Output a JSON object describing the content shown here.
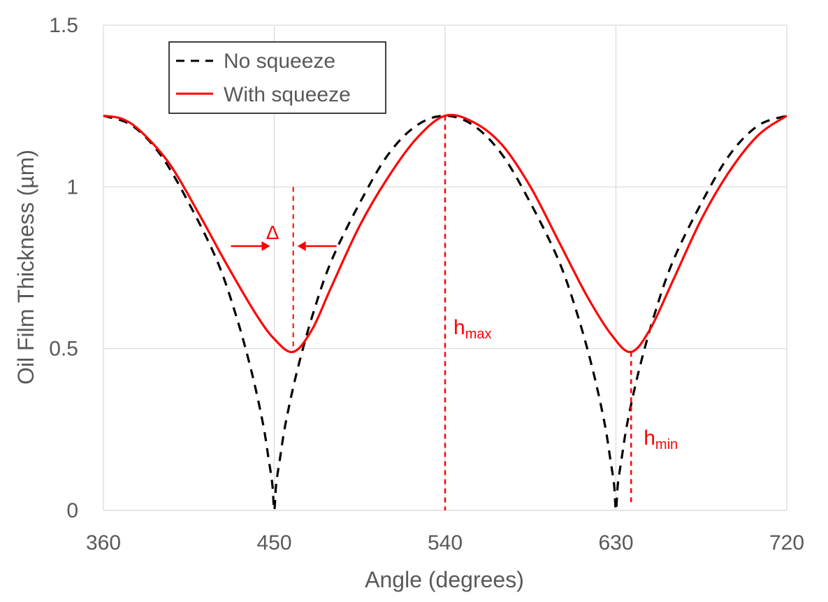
{
  "chart_data": {
    "type": "line",
    "title": "",
    "xlabel": "Angle (degrees)",
    "ylabel": "Oil Film Thickness (µm)",
    "xlim": [
      360,
      720
    ],
    "ylim": [
      0,
      1.5
    ],
    "x_ticks": [
      "360",
      "450",
      "540",
      "630",
      "720"
    ],
    "y_ticks": [
      "0",
      "0.5",
      "1",
      "1.5"
    ],
    "grid": true,
    "legend_position": "top-left",
    "series": [
      {
        "name": "No squeeze",
        "color": "#000000",
        "style": "dashed",
        "points": [
          [
            360,
            1.22
          ],
          [
            375,
            1.19
          ],
          [
            390,
            1.1
          ],
          [
            405,
            0.95
          ],
          [
            420,
            0.77
          ],
          [
            430,
            0.6
          ],
          [
            438,
            0.43
          ],
          [
            444,
            0.27
          ],
          [
            447,
            0.16
          ],
          [
            449,
            0.08
          ],
          [
            450,
            0.0
          ],
          [
            451,
            0.08
          ],
          [
            453,
            0.16
          ],
          [
            456,
            0.27
          ],
          [
            462,
            0.43
          ],
          [
            470,
            0.6
          ],
          [
            480,
            0.77
          ],
          [
            495,
            0.95
          ],
          [
            510,
            1.1
          ],
          [
            525,
            1.19
          ],
          [
            540,
            1.22
          ],
          [
            555,
            1.19
          ],
          [
            570,
            1.1
          ],
          [
            585,
            0.95
          ],
          [
            600,
            0.77
          ],
          [
            610,
            0.6
          ],
          [
            618,
            0.43
          ],
          [
            624,
            0.27
          ],
          [
            627,
            0.16
          ],
          [
            629,
            0.08
          ],
          [
            630,
            0.0
          ],
          [
            631,
            0.08
          ],
          [
            633,
            0.16
          ],
          [
            636,
            0.27
          ],
          [
            642,
            0.43
          ],
          [
            650,
            0.6
          ],
          [
            660,
            0.77
          ],
          [
            675,
            0.95
          ],
          [
            690,
            1.1
          ],
          [
            705,
            1.19
          ],
          [
            720,
            1.22
          ]
        ]
      },
      {
        "name": "With squeeze",
        "color": "#ff0000",
        "style": "solid",
        "points": [
          [
            360,
            1.22
          ],
          [
            370,
            1.21
          ],
          [
            380,
            1.17
          ],
          [
            395,
            1.07
          ],
          [
            410,
            0.92
          ],
          [
            425,
            0.76
          ],
          [
            440,
            0.61
          ],
          [
            450,
            0.53
          ],
          [
            460,
            0.49
          ],
          [
            470,
            0.56
          ],
          [
            480,
            0.69
          ],
          [
            495,
            0.88
          ],
          [
            510,
            1.03
          ],
          [
            525,
            1.15
          ],
          [
            540,
            1.22
          ],
          [
            555,
            1.2
          ],
          [
            570,
            1.13
          ],
          [
            585,
            1.0
          ],
          [
            600,
            0.83
          ],
          [
            615,
            0.66
          ],
          [
            628,
            0.54
          ],
          [
            638,
            0.49
          ],
          [
            648,
            0.56
          ],
          [
            660,
            0.71
          ],
          [
            675,
            0.9
          ],
          [
            690,
            1.05
          ],
          [
            705,
            1.16
          ],
          [
            720,
            1.22
          ]
        ]
      }
    ],
    "annotations": {
      "delta": {
        "label": "Δ",
        "x_from": 450,
        "x_to": 460
      },
      "h_max": {
        "main": "h",
        "sub": "max",
        "x": 540,
        "y": 1.22
      },
      "h_min": {
        "main": "h",
        "sub": "min",
        "x": 638,
        "y": 0.49
      },
      "min_line_1": {
        "x": 460,
        "y_top": 1.0
      }
    }
  }
}
